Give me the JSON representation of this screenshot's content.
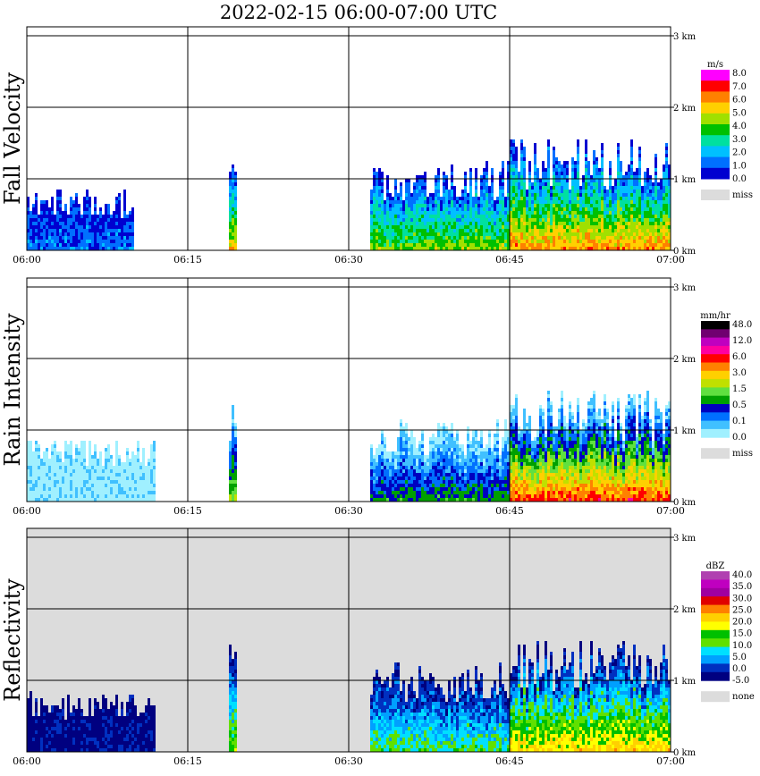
{
  "title": "2022-02-15   06:00-07:00 UTC",
  "x_ticks": [
    "06:00",
    "06:15",
    "06:30",
    "06:45",
    "07:00"
  ],
  "height_ticks": [
    "0 km",
    "1 km",
    "2 km",
    "3 km"
  ],
  "colors": {
    "background_missing": "#dcdcdc",
    "grid": "#000000"
  },
  "chart_data": [
    {
      "type": "heatmap",
      "ylabel": "Fall Velocity",
      "x_range": [
        "06:00",
        "07:00"
      ],
      "y_range_km": [
        0,
        3
      ],
      "background": "white",
      "colorbar": {
        "unit": "m/s",
        "labels": [
          "8.0",
          "7.0",
          "6.0",
          "5.0",
          "4.0",
          "3.0",
          "2.0",
          "1.0",
          "0.0"
        ],
        "colors": [
          "#ff00ff",
          "#ff0000",
          "#ff8000",
          "#ffd000",
          "#a0e000",
          "#00c000",
          "#00e0a0",
          "#00c0ff",
          "#0070ff",
          "#0000d0"
        ],
        "missing_label": "miss"
      },
      "echo_regions": [
        {
          "start": "06:00",
          "end": "06:10",
          "base_km": 0.0,
          "top_km": 0.9,
          "level": "1.0"
        },
        {
          "start": "06:19",
          "end": "06:19",
          "base_km": 0.0,
          "top_km": 1.6,
          "level": "5.0"
        },
        {
          "start": "06:32",
          "end": "06:45",
          "base_km": 0.0,
          "top_km": 1.3,
          "level": "4.0"
        },
        {
          "start": "06:45",
          "end": "07:00",
          "base_km": 0.0,
          "top_km": 1.6,
          "level": "6.0"
        }
      ]
    },
    {
      "type": "heatmap",
      "ylabel": "Rain Intensity",
      "x_range": [
        "06:00",
        "07:00"
      ],
      "y_range_km": [
        0,
        3
      ],
      "background": "white",
      "colorbar": {
        "unit": "mm/hr",
        "labels": [
          "48.0",
          "12.0",
          "6.0",
          "3.0",
          "1.5",
          "0.5",
          "0.1",
          "0.0"
        ],
        "colors": [
          "#000000",
          "#700070",
          "#c000c0",
          "#ff00a0",
          "#ff0000",
          "#ff8000",
          "#ffd000",
          "#c0e000",
          "#60e040",
          "#00a000",
          "#0000c0",
          "#0070ff",
          "#40c0ff",
          "#a0f0ff"
        ],
        "missing_label": "miss"
      },
      "echo_regions": [
        {
          "start": "06:00",
          "end": "06:12",
          "base_km": 0.0,
          "top_km": 0.9,
          "level": "0.0"
        },
        {
          "start": "06:19",
          "end": "06:19",
          "base_km": 0.0,
          "top_km": 1.6,
          "level": "1.5"
        },
        {
          "start": "06:32",
          "end": "06:45",
          "base_km": 0.0,
          "top_km": 1.2,
          "level": "0.5"
        },
        {
          "start": "06:45",
          "end": "07:00",
          "base_km": 0.0,
          "top_km": 1.6,
          "level": "6.0"
        }
      ]
    },
    {
      "type": "heatmap",
      "ylabel": "Reflectivity",
      "x_range": [
        "06:00",
        "07:00"
      ],
      "y_range_km": [
        0,
        3
      ],
      "background": "gray",
      "colorbar": {
        "unit": "dBZ",
        "labels": [
          "40.0",
          "35.0",
          "30.0",
          "25.0",
          "20.0",
          "15.0",
          "10.0",
          "5.0",
          "0.0",
          "-5.0"
        ],
        "colors": [
          "#b040b0",
          "#c000c0",
          "#a000a0",
          "#e00000",
          "#ff8000",
          "#ffd000",
          "#ffff00",
          "#00c000",
          "#60e000",
          "#00e0ff",
          "#00a0ff",
          "#0030c0",
          "#000080"
        ],
        "missing_label": "none"
      },
      "echo_regions": [
        {
          "start": "06:00",
          "end": "06:12",
          "base_km": 0.0,
          "top_km": 0.9,
          "level": "-5.0"
        },
        {
          "start": "06:19",
          "end": "06:19",
          "base_km": 0.0,
          "top_km": 1.6,
          "level": "15.0"
        },
        {
          "start": "06:32",
          "end": "06:45",
          "base_km": 0.0,
          "top_km": 1.3,
          "level": "10.0"
        },
        {
          "start": "06:45",
          "end": "07:00",
          "base_km": 0.0,
          "top_km": 1.6,
          "level": "20.0"
        }
      ]
    }
  ]
}
